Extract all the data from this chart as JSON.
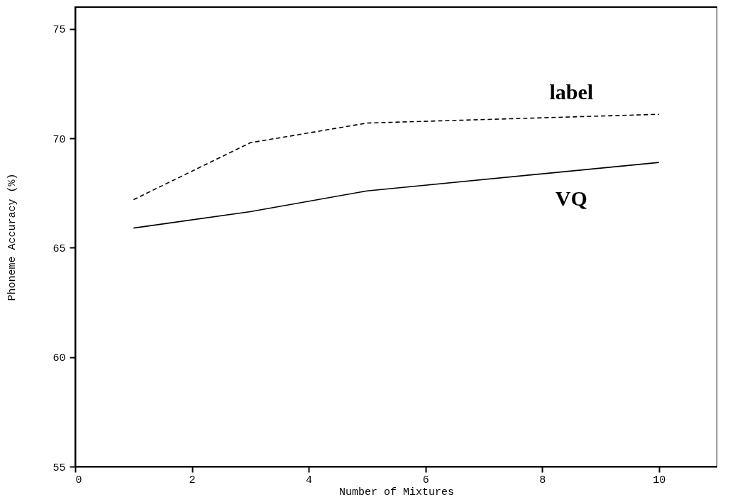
{
  "chart_data": {
    "type": "line",
    "xlabel": "Number of Mixtures",
    "ylabel": "Phoneme Accuracy (%)",
    "x": [
      1,
      3,
      5,
      10
    ],
    "series": [
      {
        "name": "label",
        "color": "#000000",
        "line_style": "dashed",
        "values": [
          67.2,
          69.8,
          70.7,
          71.1
        ]
      },
      {
        "name": "VQ",
        "color": "#000000",
        "line_style": "solid",
        "values": [
          65.9,
          66.65,
          67.6,
          68.9
        ]
      }
    ],
    "xlim": [
      0,
      11
    ],
    "xticks": [
      0,
      2,
      4,
      6,
      8,
      10
    ],
    "ylim": [
      55,
      76
    ],
    "yticks": [
      55,
      60,
      65,
      70,
      75
    ],
    "grid": false,
    "legend": false,
    "marker": "none"
  }
}
